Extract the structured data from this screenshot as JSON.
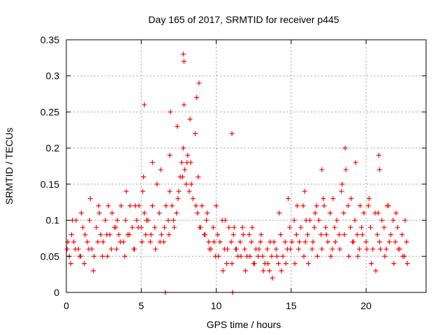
{
  "chart_data": {
    "type": "scatter",
    "title": "Day 165 of 2017, SRMTID for receiver p445",
    "xlabel": "GPS time / hours",
    "ylabel": "SRMTID / TECUs",
    "xlim": [
      0,
      24
    ],
    "ylim": [
      0,
      0.35
    ],
    "xticks": [
      0,
      5,
      10,
      15,
      20
    ],
    "xtick_labels": [
      "0",
      "5",
      "10",
      "15",
      "20"
    ],
    "yticks": [
      0,
      0.05,
      0.1,
      0.15,
      0.2,
      0.25,
      0.3,
      0.35
    ],
    "ytick_labels": [
      "0",
      "0.05",
      "0.1",
      "0.15",
      "0.2",
      "0.25",
      "0.3",
      "0.35"
    ],
    "grid": true,
    "marker": "plus",
    "color": "#ff0000",
    "series": [
      {
        "name": "SRMTID",
        "x": [
          0.05,
          0.2,
          0.35,
          0.5,
          0.65,
          0.8,
          0.95,
          1.1,
          1.25,
          1.4,
          1.55,
          1.7,
          1.85,
          2.0,
          2.15,
          2.3,
          2.45,
          2.6,
          2.75,
          2.9,
          3.05,
          3.2,
          3.35,
          3.5,
          3.65,
          3.8,
          3.95,
          4.1,
          4.25,
          4.4,
          4.55,
          4.7,
          4.85,
          5.0,
          5.1,
          5.2,
          5.3,
          5.45,
          5.6,
          5.75,
          5.9,
          6.05,
          6.2,
          6.35,
          6.5,
          6.65,
          6.8,
          6.9,
          7.05,
          7.2,
          7.35,
          7.5,
          7.6,
          7.7,
          7.8,
          7.9,
          8.0,
          8.1,
          8.2,
          8.3,
          8.45,
          8.6,
          8.75,
          8.9,
          9.05,
          9.2,
          9.35,
          9.5,
          9.65,
          9.8,
          9.95,
          10.1,
          10.25,
          10.4,
          10.55,
          10.7,
          10.85,
          11.0,
          11.15,
          11.3,
          11.45,
          11.6,
          11.75,
          11.9,
          12.05,
          12.2,
          12.35,
          12.5,
          12.65,
          12.8,
          12.95,
          13.1,
          13.25,
          13.4,
          13.55,
          13.7,
          13.85,
          14.0,
          14.15,
          14.3,
          14.45,
          14.6,
          14.75,
          14.9,
          15.05,
          15.2,
          15.35,
          15.5,
          15.65,
          15.8,
          15.95,
          16.1,
          16.25,
          16.4,
          16.55,
          16.7,
          16.85,
          17.0,
          17.15,
          17.3,
          17.45,
          17.6,
          17.75,
          17.9,
          18.05,
          18.2,
          18.35,
          18.5,
          18.65,
          18.8,
          18.95,
          19.1,
          19.25,
          19.4,
          19.55,
          19.7,
          19.85,
          20.0,
          20.15,
          20.3,
          20.45,
          20.6,
          20.75,
          20.9,
          21.05,
          21.2,
          21.35,
          21.5,
          21.65,
          21.8,
          21.95,
          22.1,
          22.25,
          22.4,
          22.55,
          22.7,
          0.1,
          0.3,
          0.6,
          0.9,
          1.2,
          1.5,
          1.8,
          2.1,
          2.4,
          2.7,
          3.0,
          3.3,
          3.6,
          3.9,
          4.2,
          4.5,
          4.8,
          5.05,
          5.35,
          5.65,
          5.95,
          6.25,
          6.55,
          6.85,
          7.15,
          7.45,
          7.75,
          8.05,
          8.35,
          8.65,
          8.95,
          9.25,
          9.55,
          9.85,
          10.15,
          10.45,
          10.75,
          11.05,
          11.35,
          11.65,
          11.95,
          12.25,
          12.55,
          12.85,
          13.15,
          13.45,
          13.75,
          14.05,
          14.35,
          14.65,
          14.95,
          15.25,
          15.55,
          15.85,
          16.15,
          16.45,
          16.75,
          17.05,
          17.35,
          17.65,
          17.95,
          18.25,
          18.55,
          18.85,
          19.15,
          19.45,
          19.75,
          20.05,
          20.35,
          20.65,
          20.95,
          21.25,
          21.55,
          21.85,
          22.15,
          22.45,
          22.75,
          0.4,
          1.0,
          1.6,
          2.2,
          2.8,
          3.4,
          4.0,
          4.6,
          5.15,
          5.75,
          6.3,
          6.9,
          7.4,
          7.85,
          8.25,
          8.8,
          9.4,
          10.0,
          10.6,
          11.2,
          11.8,
          12.4,
          13.0,
          13.6,
          14.2,
          14.8,
          15.4,
          16.0,
          16.6,
          17.2,
          17.8,
          18.4,
          19.0,
          19.6,
          20.2,
          20.8,
          21.4,
          22.0,
          22.6,
          5.2,
          6.95,
          7.8,
          7.85,
          8.85,
          11.05,
          18.6,
          19.3,
          20.85,
          20.9,
          17.05,
          8.7,
          6.6,
          11.1,
          15.9
        ],
        "y": [
          0.06,
          0.05,
          0.08,
          0.07,
          0.1,
          0.06,
          0.05,
          0.09,
          0.08,
          0.07,
          0.1,
          0.06,
          0.05,
          0.09,
          0.12,
          0.08,
          0.07,
          0.1,
          0.05,
          0.08,
          0.11,
          0.09,
          0.06,
          0.08,
          0.12,
          0.07,
          0.1,
          0.08,
          0.12,
          0.09,
          0.06,
          0.1,
          0.12,
          0.09,
          0.14,
          0.11,
          0.08,
          0.1,
          0.07,
          0.12,
          0.09,
          0.15,
          0.11,
          0.08,
          0.07,
          0.12,
          0.1,
          0.14,
          0.12,
          0.09,
          0.11,
          0.14,
          0.16,
          0.18,
          0.2,
          0.17,
          0.15,
          0.19,
          0.14,
          0.18,
          0.13,
          0.22,
          0.11,
          0.09,
          0.12,
          0.08,
          0.1,
          0.07,
          0.06,
          0.09,
          0.05,
          0.08,
          0.07,
          0.1,
          0.06,
          0.04,
          0.09,
          0.07,
          0.08,
          0.06,
          0.05,
          0.07,
          0.09,
          0.06,
          0.05,
          0.08,
          0.07,
          0.04,
          0.06,
          0.05,
          0.07,
          0.05,
          0.04,
          0.06,
          0.03,
          0.05,
          0.07,
          0.06,
          0.04,
          0.08,
          0.05,
          0.07,
          0.06,
          0.09,
          0.07,
          0.1,
          0.08,
          0.06,
          0.09,
          0.12,
          0.07,
          0.08,
          0.1,
          0.06,
          0.09,
          0.12,
          0.1,
          0.08,
          0.13,
          0.09,
          0.07,
          0.11,
          0.06,
          0.09,
          0.1,
          0.08,
          0.14,
          0.11,
          0.17,
          0.12,
          0.09,
          0.07,
          0.1,
          0.08,
          0.06,
          0.09,
          0.11,
          0.07,
          0.12,
          0.09,
          0.06,
          0.11,
          0.08,
          0.07,
          0.1,
          0.09,
          0.06,
          0.12,
          0.08,
          0.1,
          0.07,
          0.09,
          0.06,
          0.08,
          0.05,
          0.07,
          0.07,
          0.04,
          0.06,
          0.05,
          0.04,
          0.06,
          0.03,
          0.07,
          0.05,
          0.08,
          0.06,
          0.09,
          0.07,
          0.05,
          0.08,
          0.06,
          0.09,
          0.07,
          0.1,
          0.08,
          0.06,
          0.07,
          0.09,
          0.08,
          0.1,
          0.13,
          0.16,
          0.18,
          0.15,
          0.12,
          0.09,
          0.08,
          0.06,
          0.07,
          0.05,
          0.03,
          0.06,
          0.04,
          0.06,
          0.05,
          0.03,
          0.05,
          0.04,
          0.06,
          0.03,
          0.04,
          0.02,
          0.05,
          0.03,
          0.04,
          0.06,
          0.04,
          0.07,
          0.05,
          0.04,
          0.07,
          0.05,
          0.06,
          0.08,
          0.05,
          0.07,
          0.06,
          0.08,
          0.05,
          0.07,
          0.05,
          0.08,
          0.06,
          0.04,
          0.03,
          0.06,
          0.05,
          0.07,
          0.04,
          0.06,
          0.05,
          0.04,
          0.1,
          0.11,
          0.13,
          0.11,
          0.12,
          0.1,
          0.14,
          0.12,
          0.16,
          0.18,
          0.17,
          0.19,
          0.23,
          0.26,
          0.24,
          0.16,
          0.11,
          0.12,
          0.1,
          0.09,
          0.08,
          0.09,
          0.08,
          0.07,
          0.11,
          0.13,
          0.12,
          0.1,
          0.11,
          0.12,
          0.13,
          0.15,
          0.13,
          0.12,
          0.13,
          0.11,
          0.12,
          0.11,
          0.1,
          0.26,
          0.25,
          0.33,
          0.32,
          0.29,
          0.22,
          0.2,
          0.18,
          0.19,
          0.17,
          0.17,
          0.27,
          0.0,
          0.0,
          0.14
        ]
      }
    ]
  }
}
